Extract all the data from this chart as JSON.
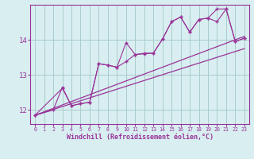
{
  "bg_color": "#d8eef0",
  "grid_color": "#aacccc",
  "line_color": "#993399",
  "xlabel": "Windchill (Refroidissement éolien,°C)",
  "xlim": [
    -0.5,
    23.5
  ],
  "ylim": [
    11.6,
    15.0
  ],
  "yticks": [
    12,
    13,
    14
  ],
  "xticks": [
    0,
    1,
    2,
    3,
    4,
    5,
    6,
    7,
    8,
    9,
    10,
    11,
    12,
    13,
    14,
    15,
    16,
    17,
    18,
    19,
    20,
    21,
    22,
    23
  ],
  "series1_x": [
    0,
    2,
    3,
    4,
    5,
    6,
    7,
    8,
    9,
    10,
    11,
    12,
    13,
    14,
    15,
    16,
    17,
    18,
    19,
    20,
    21,
    22,
    23
  ],
  "series1_y": [
    11.85,
    12.0,
    12.65,
    12.12,
    12.18,
    12.22,
    13.32,
    13.28,
    13.22,
    13.38,
    13.58,
    13.6,
    13.62,
    14.02,
    14.52,
    14.65,
    14.22,
    14.58,
    14.62,
    14.52,
    14.88,
    13.95,
    14.05
  ],
  "series2_x": [
    0,
    3,
    4,
    5,
    6,
    7,
    8,
    9,
    10,
    11,
    12,
    13,
    14,
    15,
    16,
    17,
    18,
    19,
    20,
    21,
    22,
    23
  ],
  "series2_y": [
    11.85,
    12.62,
    12.12,
    12.18,
    12.22,
    13.32,
    13.28,
    13.22,
    13.92,
    13.58,
    13.62,
    13.62,
    14.02,
    14.52,
    14.65,
    14.22,
    14.58,
    14.62,
    14.88,
    14.88,
    13.95,
    14.05
  ],
  "series3_x": [
    0,
    23
  ],
  "series3_y": [
    11.85,
    13.75
  ],
  "series4_x": [
    0,
    23
  ],
  "series4_y": [
    11.85,
    14.1
  ]
}
